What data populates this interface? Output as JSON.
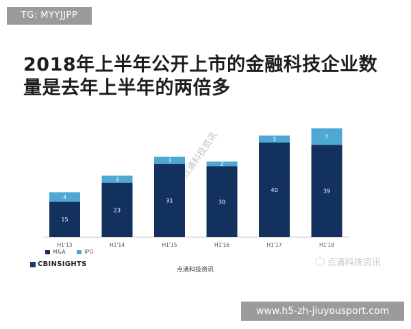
{
  "top_tag": "TG: MYYJJPP",
  "bottom_tag": "www.h5-zh-jiuyousport.com",
  "watermark": "点滴科技资讯",
  "wechat_label": "点滴科技资讯",
  "logo_text": "CBINSIGHTS",
  "source_text": "点滴科技资讯",
  "colors": {
    "ma": "#13315f",
    "ipo": "#4fa7d3"
  },
  "chart_data": {
    "type": "bar",
    "stacked": true,
    "title": "2018年上半年公开上市的金融科技企业数量是去年上半年的两倍多",
    "categories": [
      "H1'13",
      "H1'14",
      "H1'15",
      "H1'16",
      "H1'17",
      "H1'18"
    ],
    "series": [
      {
        "name": "M&A",
        "values": [
          15,
          23,
          31,
          30,
          40,
          39
        ]
      },
      {
        "name": "IPO",
        "values": [
          4,
          3,
          3,
          2,
          3,
          7
        ]
      }
    ],
    "legend": "bottom-left",
    "grid": false
  }
}
